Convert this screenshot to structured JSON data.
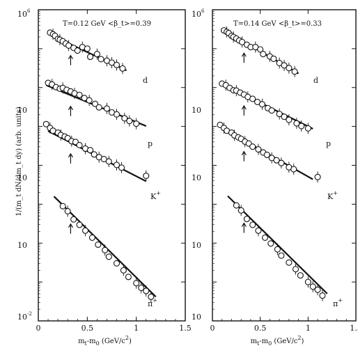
{
  "figure": {
    "ylabel": "1/(m_t dN/dm_t dy) (arb. units)"
  },
  "chart_data": [
    {
      "type": "scatter",
      "panel": "left",
      "title": "T=0.12 GeV   <β_t>=0.39",
      "title_parts": {
        "temperature": "T=0.12 GeV",
        "beta": "<β_t>=0.39"
      },
      "xlabel": "m_t-m_0  (GeV/c^2)",
      "xlabel_parts": {
        "main": "m",
        "sub1": "t",
        "mid": "-m",
        "sub2": "0",
        "tail": "  (GeV/c",
        "sup": "2",
        "close": ")"
      },
      "xlim": [
        0,
        1.5
      ],
      "ylim_log10": [
        -2,
        6
      ],
      "log_y": true,
      "grid": false,
      "xticks": [
        0,
        0.5,
        1.0,
        1.5
      ],
      "xtick_labels": [
        "0",
        "0.5",
        "1",
        "1.5"
      ],
      "ytick_labels": [
        {
          "exp": -2,
          "base": "10",
          "sup": "-2"
        },
        {
          "exp": 0,
          "base": "10",
          "sup": ""
        },
        {
          "exp": 2,
          "base": "10",
          "sup": ""
        },
        {
          "exp": 3,
          "base": "10",
          "sup": ""
        },
        {
          "exp": 6,
          "base": "10",
          "sup": "6"
        }
      ],
      "series": [
        {
          "name": "d",
          "label_base": "d",
          "label_sup": "",
          "arrow_x": 0.33,
          "fit": {
            "x": [
              0.1,
              0.9
            ],
            "log10y": [
              5.38,
              4.44
            ]
          },
          "x": [
            0.12,
            0.15,
            0.17,
            0.2,
            0.22,
            0.25,
            0.28,
            0.31,
            0.36,
            0.4,
            0.45,
            0.5,
            0.53,
            0.6,
            0.64,
            0.7,
            0.75,
            0.8,
            0.86
          ],
          "log10y": [
            5.41,
            5.37,
            5.33,
            5.25,
            5.23,
            5.19,
            5.13,
            5.08,
            5.02,
            4.95,
            5.04,
            5.0,
            4.79,
            4.86,
            4.73,
            4.69,
            4.64,
            4.58,
            4.49
          ]
        },
        {
          "name": "p",
          "label_base": "p",
          "label_sup": "",
          "arrow_x": 0.33,
          "fit": {
            "x": [
              0.08,
              1.1
            ],
            "log10y": [
              4.06,
              3.01
            ]
          },
          "x": [
            0.1,
            0.14,
            0.18,
            0.22,
            0.25,
            0.29,
            0.33,
            0.37,
            0.42,
            0.47,
            0.52,
            0.58,
            0.62,
            0.7,
            0.75,
            0.8,
            0.88,
            0.93,
            1.0
          ],
          "log10y": [
            4.12,
            4.08,
            4.01,
            3.97,
            3.99,
            3.94,
            3.9,
            3.85,
            3.81,
            3.73,
            3.67,
            3.58,
            3.49,
            3.46,
            3.36,
            3.31,
            3.21,
            3.14,
            3.07
          ]
        },
        {
          "name": "K+",
          "label_base": "K",
          "label_sup": "+",
          "arrow_x": 0.33,
          "fit": {
            "x": [
              0.1,
              1.1
            ],
            "log10y": [
              2.88,
              1.59
            ]
          },
          "x": [
            0.08,
            0.12,
            0.15,
            0.2,
            0.23,
            0.27,
            0.3,
            0.34,
            0.38,
            0.42,
            0.48,
            0.53,
            0.57,
            0.62,
            0.67,
            0.72,
            0.8,
            0.85,
            1.1
          ],
          "log10y": [
            3.06,
            2.96,
            2.89,
            2.84,
            2.78,
            2.74,
            2.7,
            2.62,
            2.6,
            2.52,
            2.43,
            2.39,
            2.28,
            2.21,
            2.16,
            2.1,
            2.01,
            1.94,
            1.73
          ]
        },
        {
          "name": "π+",
          "label_base": "π",
          "label_sup": "+",
          "arrow_x": 0.33,
          "fit": {
            "x": [
              0.16,
              1.2
            ],
            "log10y": [
              1.2,
              -1.38
            ]
          },
          "x": [
            0.25,
            0.3,
            0.36,
            0.42,
            0.48,
            0.55,
            0.61,
            0.68,
            0.72,
            0.8,
            0.87,
            0.92,
            1.0,
            1.05,
            1.1,
            1.15
          ],
          "log10y": [
            0.95,
            0.82,
            0.61,
            0.47,
            0.32,
            0.14,
            -0.04,
            -0.18,
            -0.35,
            -0.52,
            -0.7,
            -0.87,
            -1.03,
            -1.15,
            -1.23,
            -1.38
          ]
        }
      ]
    },
    {
      "type": "scatter",
      "panel": "right",
      "title": "T=0.14 GeV   <β_t>=0.33",
      "title_parts": {
        "temperature": "T=0.14 GeV",
        "beta": "<β_t>=0.33"
      },
      "xlabel": "m_t-m_0  (GeV/c^2)",
      "xlabel_parts": {
        "main": "m",
        "sub1": "t",
        "mid": "-m",
        "sub2": "0",
        "tail": "  (GeV/c",
        "sup": "2",
        "close": ")"
      },
      "xlim": [
        0,
        1.5
      ],
      "ylim_log10": [
        -2,
        6
      ],
      "log_y": true,
      "grid": false,
      "xticks": [
        0,
        0.5,
        1.0,
        1.5
      ],
      "xtick_labels": [
        "0",
        "0.5",
        "1",
        "1.5"
      ],
      "ytick_labels": [
        {
          "exp": -2,
          "base": "10",
          "sup": ""
        },
        {
          "exp": 0,
          "base": "10",
          "sup": ""
        },
        {
          "exp": 2,
          "base": "10",
          "sup": ""
        },
        {
          "exp": 3,
          "base": "10",
          "sup": ""
        },
        {
          "exp": 6,
          "base": "10",
          "sup": "6"
        }
      ],
      "series": [
        {
          "name": "d",
          "label_base": "d",
          "label_sup": "",
          "arrow_x": 0.33,
          "fit": {
            "x": [
              0.1,
              0.9
            ],
            "log10y": [
              5.5,
              4.36
            ]
          },
          "x": [
            0.12,
            0.15,
            0.17,
            0.2,
            0.22,
            0.25,
            0.28,
            0.31,
            0.36,
            0.4,
            0.45,
            0.5,
            0.53,
            0.6,
            0.64,
            0.7,
            0.75,
            0.8,
            0.86
          ],
          "log10y": [
            5.47,
            5.43,
            5.4,
            5.33,
            5.3,
            5.26,
            5.21,
            5.17,
            5.1,
            5.04,
            5.04,
            4.98,
            4.86,
            4.8,
            4.74,
            4.63,
            4.57,
            4.5,
            4.41
          ]
        },
        {
          "name": "p",
          "label_base": "p",
          "label_sup": "",
          "arrow_x": 0.33,
          "fit": {
            "x": [
              0.08,
              1.05
            ],
            "log10y": [
              4.12,
              2.94
            ]
          },
          "x": [
            0.1,
            0.14,
            0.18,
            0.22,
            0.25,
            0.29,
            0.33,
            0.37,
            0.42,
            0.47,
            0.52,
            0.58,
            0.62,
            0.7,
            0.75,
            0.8,
            0.88,
            0.93,
            1.0
          ],
          "log10y": [
            4.1,
            4.06,
            3.99,
            3.93,
            3.92,
            3.87,
            3.82,
            3.76,
            3.71,
            3.63,
            3.57,
            3.47,
            3.41,
            3.32,
            3.25,
            3.17,
            3.08,
            3.01,
            2.95
          ]
        },
        {
          "name": "K+",
          "label_base": "K",
          "label_sup": "+",
          "arrow_x": 0.33,
          "fit": {
            "x": [
              0.1,
              1.05
            ],
            "log10y": [
              2.96,
              1.64
            ]
          },
          "x": [
            0.08,
            0.12,
            0.15,
            0.2,
            0.23,
            0.27,
            0.3,
            0.34,
            0.38,
            0.42,
            0.48,
            0.53,
            0.57,
            0.62,
            0.67,
            0.72,
            0.8,
            0.85,
            1.1
          ],
          "log10y": [
            3.04,
            2.96,
            2.89,
            2.84,
            2.77,
            2.72,
            2.68,
            2.61,
            2.56,
            2.48,
            2.41,
            2.33,
            2.27,
            2.19,
            2.13,
            2.06,
            1.95,
            1.9,
            1.7
          ]
        },
        {
          "name": "π+",
          "label_base": "π",
          "label_sup": "+",
          "arrow_x": 0.33,
          "fit": {
            "x": [
              0.16,
              1.2
            ],
            "log10y": [
              1.21,
              -1.3
            ]
          },
          "x": [
            0.25,
            0.3,
            0.36,
            0.42,
            0.48,
            0.55,
            0.61,
            0.68,
            0.72,
            0.8,
            0.87,
            0.92,
            1.0,
            1.05,
            1.1,
            1.15
          ],
          "log10y": [
            0.97,
            0.84,
            0.62,
            0.47,
            0.32,
            0.14,
            -0.01,
            -0.16,
            -0.32,
            -0.5,
            -0.67,
            -0.83,
            -1.0,
            -1.12,
            -1.2,
            -1.35
          ]
        }
      ]
    }
  ]
}
